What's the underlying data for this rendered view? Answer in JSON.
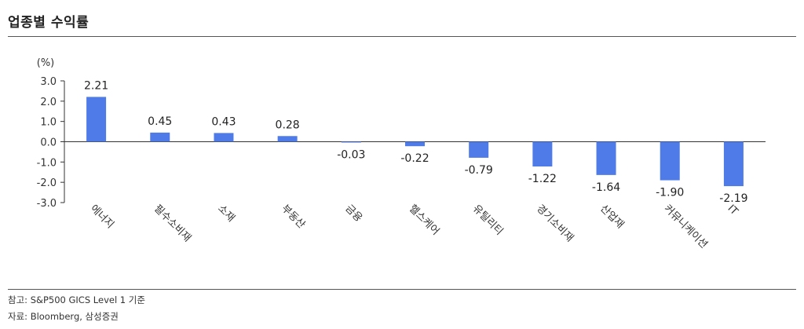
{
  "header": {
    "title": "업종별 수익률"
  },
  "notes": {
    "reference": "참고: S&P500 GICS Level 1 기준",
    "source": "자료: Bloomberg, 삼성증권"
  },
  "colors": {
    "bar": "#4f7be8",
    "axis": "#333333",
    "rule": "#555555"
  },
  "chart_data": {
    "type": "bar",
    "title": "업종별 수익률",
    "unit_label": "(%)",
    "categories": [
      "에너지",
      "필수소비재",
      "소재",
      "부동산",
      "금융",
      "헬스케어",
      "유틸리티",
      "경기소비재",
      "산업재",
      "커뮤니케이션",
      "IT"
    ],
    "values": [
      2.21,
      0.45,
      0.43,
      0.28,
      -0.03,
      -0.22,
      -0.79,
      -1.22,
      -1.64,
      -1.9,
      -2.19
    ],
    "data_labels": [
      "2.21",
      "0.45",
      "0.43",
      "0.28",
      "-0.03",
      "-0.22",
      "-0.79",
      "-1.22",
      "-1.64",
      "-1.90",
      "-2.19"
    ],
    "ylim": [
      -3.0,
      3.0
    ],
    "yticks": [
      "3.0",
      "2.0",
      "1.0",
      "0.0",
      "-1.0",
      "-2.0",
      "-3.0"
    ],
    "grid": false,
    "legend": "none"
  }
}
